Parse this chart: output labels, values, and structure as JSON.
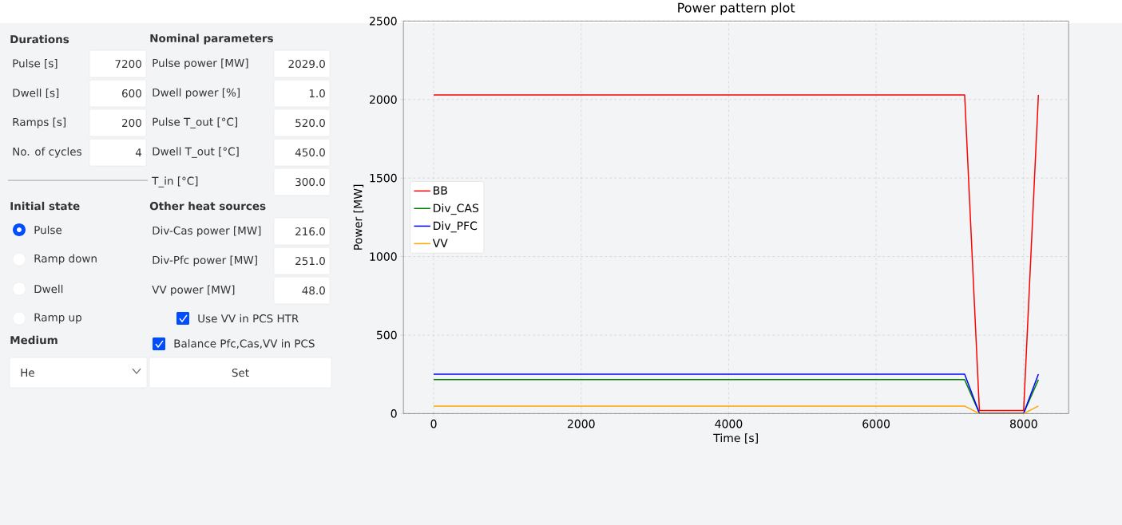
{
  "chart_data": [
    {
      "type": "other",
      "annotations": [
        "Durations",
        "Nominal parameters",
        "Pulse [s]",
        "7200",
        "Pulse power [MW]",
        "2029.0",
        "Dwell [s]",
        "600",
        "Dwell power [%]",
        "1.0",
        "Ramps [s]",
        "200",
        "Pulse T_out [°C]",
        "520.0",
        "No. of cycles",
        "4",
        "Dwell T_out [°C]",
        "450.0",
        "T_in [°C]",
        "300.0",
        "Initial state",
        "Other heat sources",
        "Pulse",
        "Div-Cas power [MW]",
        "216.0",
        "Ramp down",
        "Div-Pfc power [MW]",
        "251.0",
        "Dwell",
        "VV power [MW]",
        "48.0",
        "Ramp up",
        "Use VV in PCS HTR",
        "Medium",
        "Balance Pfc,Cas,VV in PCS",
        "He",
        "Set"
      ]
    },
    {
      "type": "line",
      "title": "Power pattern plot",
      "xlabel": "Time [s]",
      "ylabel": "Power [MW]",
      "x": [
        0,
        7200,
        7400,
        8000,
        8200
      ],
      "series": [
        {
          "name": "BB",
          "color": "#ff0000",
          "values": [
            2029,
            2029,
            20,
            20,
            2029
          ]
        },
        {
          "name": "Div_CAS",
          "color": "#008000",
          "values": [
            216,
            216,
            2,
            2,
            216
          ]
        },
        {
          "name": "Div_PFC",
          "color": "#0000ff",
          "values": [
            251,
            251,
            2,
            2,
            251
          ]
        },
        {
          "name": "VV",
          "color": "#ffa500",
          "values": [
            48,
            48,
            0,
            0,
            48
          ]
        }
      ],
      "xlim": [
        -410,
        8610
      ],
      "ylim": [
        0,
        2500
      ],
      "xticks": [
        0,
        2000,
        4000,
        6000,
        8000
      ],
      "yticks": [
        0,
        500,
        1000,
        1500,
        2000,
        2500
      ],
      "grid": true,
      "legend": "left",
      "marker": "none",
      "line_style": "solid"
    }
  ]
}
